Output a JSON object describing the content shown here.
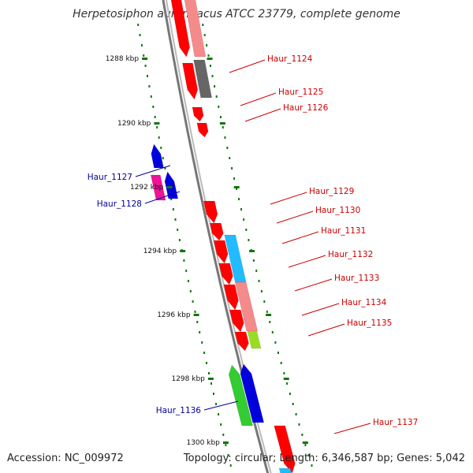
{
  "title": "Herpetosiphon aurantiacus ATCC 23779, complete genome",
  "footer": {
    "accession": "Accession: NC_009972",
    "summary": "Topology: circular; Length: 6,346,587 bp; Genes: 5,042"
  },
  "colors": {
    "red": "#ff0000",
    "pink": "#f58a8a",
    "gray": "#666666",
    "blue": "#0000dd",
    "magenta": "#ee1199",
    "cyan": "#22bbff",
    "green": "#33cc33",
    "lime": "#99dd22",
    "label_red": "#cc0000",
    "label_blue": "#000099",
    "tick_green": "#117711",
    "backbone": "#888888"
  },
  "ticks": [
    "1288 kbp",
    "1290 kbp",
    "1292 kbp",
    "1294 kbp",
    "1296 kbp",
    "1298 kbp",
    "1300 kbp"
  ],
  "gene_labels": [
    {
      "name": "Haur_1124",
      "strand": "plus"
    },
    {
      "name": "Haur_1125",
      "strand": "plus"
    },
    {
      "name": "Haur_1126",
      "strand": "plus"
    },
    {
      "name": "Haur_1127",
      "strand": "minus"
    },
    {
      "name": "Haur_1128",
      "strand": "minus"
    },
    {
      "name": "Haur_1129",
      "strand": "plus"
    },
    {
      "name": "Haur_1130",
      "strand": "plus"
    },
    {
      "name": "Haur_1131",
      "strand": "plus"
    },
    {
      "name": "Haur_1132",
      "strand": "plus"
    },
    {
      "name": "Haur_1133",
      "strand": "plus"
    },
    {
      "name": "Haur_1134",
      "strand": "plus"
    },
    {
      "name": "Haur_1135",
      "strand": "plus"
    },
    {
      "name": "Haur_1136",
      "strand": "minus"
    },
    {
      "name": "Haur_1137",
      "strand": "plus"
    }
  ]
}
